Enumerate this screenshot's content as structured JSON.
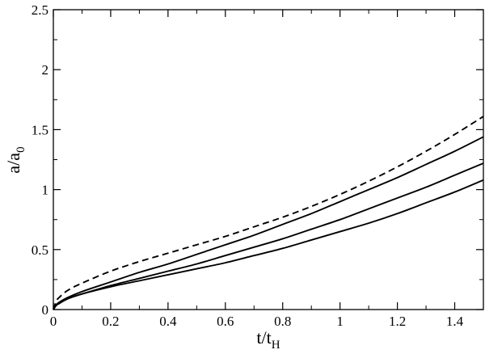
{
  "chart_data": {
    "type": "line",
    "xlabel": {
      "main": "t/t",
      "sub": "H"
    },
    "ylabel": {
      "main": "a/a",
      "sub": "0"
    },
    "xlim": [
      0,
      1.5
    ],
    "ylim": [
      0,
      2.5
    ],
    "xticks": [
      "0",
      "0.2",
      "0.4",
      "0.6",
      "0.8",
      "1",
      "1.2",
      "1.4"
    ],
    "yticks": [
      "0",
      "0.5",
      "1",
      "1.5",
      "2",
      "2.5"
    ],
    "grid": false,
    "series": [
      {
        "style": "dashed",
        "x": [
          0,
          0.01,
          0.02,
          0.05,
          0.1,
          0.2,
          0.3,
          0.4,
          0.5,
          0.6,
          0.7,
          0.8,
          0.9,
          1.0,
          1.1,
          1.2,
          1.3,
          1.4,
          1.5
        ],
        "y": [
          0,
          0.07,
          0.1,
          0.16,
          0.22,
          0.32,
          0.4,
          0.47,
          0.54,
          0.61,
          0.69,
          0.77,
          0.86,
          0.96,
          1.07,
          1.19,
          1.32,
          1.46,
          1.61
        ]
      },
      {
        "style": "solid",
        "x": [
          0,
          0.01,
          0.02,
          0.05,
          0.1,
          0.2,
          0.3,
          0.4,
          0.5,
          0.6,
          0.7,
          0.8,
          0.9,
          1.0,
          1.1,
          1.2,
          1.3,
          1.4,
          1.5
        ],
        "y": [
          0,
          0.04,
          0.06,
          0.1,
          0.15,
          0.23,
          0.31,
          0.38,
          0.46,
          0.54,
          0.62,
          0.71,
          0.8,
          0.9,
          1.0,
          1.1,
          1.21,
          1.32,
          1.44
        ]
      },
      {
        "style": "solid",
        "x": [
          0,
          0.01,
          0.02,
          0.05,
          0.1,
          0.2,
          0.3,
          0.4,
          0.5,
          0.6,
          0.7,
          0.8,
          0.9,
          1.0,
          1.1,
          1.2,
          1.3,
          1.4,
          1.5
        ],
        "y": [
          0,
          0.035,
          0.05,
          0.09,
          0.13,
          0.2,
          0.26,
          0.32,
          0.38,
          0.45,
          0.52,
          0.59,
          0.67,
          0.75,
          0.84,
          0.93,
          1.02,
          1.12,
          1.22
        ]
      },
      {
        "style": "solid",
        "x": [
          0,
          0.01,
          0.02,
          0.05,
          0.1,
          0.2,
          0.3,
          0.4,
          0.5,
          0.6,
          0.7,
          0.8,
          0.9,
          1.0,
          1.1,
          1.2,
          1.3,
          1.4,
          1.5
        ],
        "y": [
          0,
          0.035,
          0.05,
          0.09,
          0.13,
          0.19,
          0.24,
          0.29,
          0.34,
          0.39,
          0.45,
          0.51,
          0.58,
          0.65,
          0.72,
          0.8,
          0.89,
          0.98,
          1.08
        ]
      }
    ]
  }
}
